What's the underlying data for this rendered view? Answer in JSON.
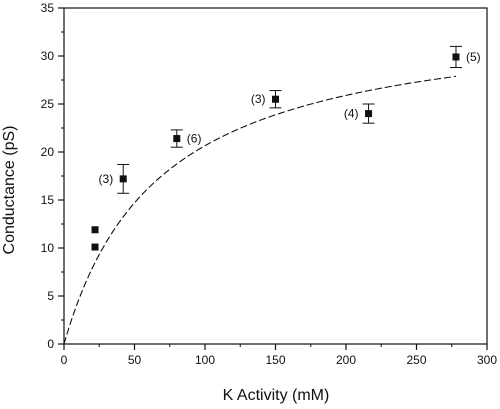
{
  "chart_data": {
    "type": "scatter",
    "xlabel": "K Activity (mM)",
    "ylabel": "Conductance (pS)",
    "xlim": [
      0,
      300
    ],
    "ylim": [
      0,
      35
    ],
    "xticks": [
      0,
      50,
      100,
      150,
      200,
      250,
      300
    ],
    "yticks": [
      0,
      5,
      10,
      15,
      20,
      25,
      30,
      35
    ],
    "x_minor_step": 25,
    "y_minor_step": 2.5,
    "grid": false,
    "points": [
      {
        "x": 22,
        "y": 10.1,
        "err": 0,
        "n": ""
      },
      {
        "x": 22,
        "y": 11.9,
        "err": 0,
        "n": ""
      },
      {
        "x": 42,
        "y": 17.2,
        "err": 1.5,
        "n": "(3)"
      },
      {
        "x": 80,
        "y": 21.4,
        "err": 0.9,
        "n": "(6)"
      },
      {
        "x": 150,
        "y": 25.5,
        "err": 0.9,
        "n": "(3)"
      },
      {
        "x": 216,
        "y": 24.0,
        "err": 1.0,
        "n": "(4)"
      },
      {
        "x": 278,
        "y": 29.9,
        "err": 1.1,
        "n": "(5)"
      }
    ],
    "fit": {
      "style": "dashed",
      "model": "michaelis-menten",
      "gmax": 34.7,
      "km": 68
    }
  }
}
